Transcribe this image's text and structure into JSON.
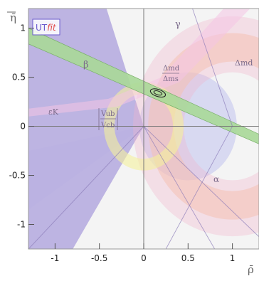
{
  "chart_data": {
    "type": "scatter",
    "title": "",
    "xlabel": "ρ̄",
    "ylabel": "η̄",
    "xlim": [
      -1.3,
      1.3
    ],
    "ylim": [
      -1.25,
      1.2
    ],
    "grid": true,
    "x_ticks": [
      -1,
      -0.5,
      0,
      0.5,
      1
    ],
    "y_ticks": [
      -1,
      -0.5,
      0,
      0.5,
      1
    ],
    "x_tick_labels": [
      "-1",
      "-0.5",
      "0",
      "0.5",
      "1"
    ],
    "y_tick_labels": [
      "-1",
      "-0.5",
      "0",
      "0.5",
      "1"
    ],
    "logo": {
      "text_ut": "UT",
      "text_fit": "fit"
    },
    "annotations": {
      "gamma": "γ",
      "beta": "β",
      "alpha": "α",
      "epsilon_k": "εK",
      "dm_d": "Δmd",
      "dm_ratio_num": "Δmd",
      "dm_ratio_den": "Δms",
      "vub_num": "Vub",
      "vub_den": "Vcb"
    },
    "best_fit": {
      "x": 0.16,
      "y": 0.34
    },
    "colors": {
      "background": "#f4f4f4",
      "gamma": "#b9b0e0",
      "beta": "#a8d898",
      "alpha": "#d2d4f0",
      "dm": "#f8c8a6",
      "vub": "#f4f09c",
      "epsk": "#f4c4e4",
      "dmd": "#f2b4cc"
    }
  }
}
